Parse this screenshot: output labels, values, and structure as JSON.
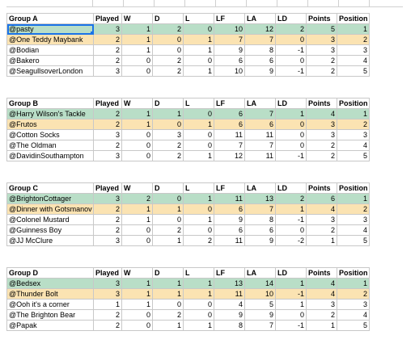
{
  "sheet": {
    "headers": [
      "Played",
      "W",
      "D",
      "L",
      "LF",
      "LA",
      "LD",
      "Points",
      "Position"
    ],
    "groups": [
      {
        "name": "Group A",
        "rows": [
          {
            "team": "@pasty",
            "vals": [
              "3",
              "1",
              "2",
              "0",
              "10",
              "12",
              "2",
              "5",
              "1"
            ]
          },
          {
            "team": "@One Teddy Maybank",
            "vals": [
              "2",
              "1",
              "0",
              "1",
              "7",
              "7",
              "0",
              "3",
              "2"
            ]
          },
          {
            "team": "@Bodian",
            "vals": [
              "2",
              "1",
              "0",
              "1",
              "9",
              "8",
              "-1",
              "3",
              "3"
            ]
          },
          {
            "team": "@Bakero",
            "vals": [
              "2",
              "0",
              "2",
              "0",
              "6",
              "6",
              "0",
              "2",
              "4"
            ]
          },
          {
            "team": "@SeagullsoverLondon",
            "vals": [
              "3",
              "0",
              "2",
              "1",
              "10",
              "9",
              "-1",
              "2",
              "5"
            ]
          }
        ]
      },
      {
        "name": "Group B",
        "rows": [
          {
            "team": "@Harry Wilson's Tackle",
            "vals": [
              "2",
              "1",
              "1",
              "0",
              "6",
              "7",
              "1",
              "4",
              "1"
            ]
          },
          {
            "team": "@Frutos",
            "vals": [
              "2",
              "1",
              "0",
              "1",
              "6",
              "6",
              "0",
              "3",
              "2"
            ]
          },
          {
            "team": "@Cotton Socks",
            "vals": [
              "3",
              "0",
              "3",
              "0",
              "11",
              "11",
              "0",
              "3",
              "3"
            ]
          },
          {
            "team": "@The Oldman",
            "vals": [
              "2",
              "0",
              "2",
              "0",
              "7",
              "7",
              "0",
              "2",
              "4"
            ]
          },
          {
            "team": "@DavidinSouthampton",
            "vals": [
              "3",
              "0",
              "2",
              "1",
              "12",
              "11",
              "-1",
              "2",
              "5"
            ]
          }
        ]
      },
      {
        "name": "Group C",
        "rows": [
          {
            "team": "@BrightonCottager",
            "vals": [
              "3",
              "2",
              "0",
              "1",
              "11",
              "13",
              "2",
              "6",
              "1"
            ]
          },
          {
            "team": "@Dinner with Gotsmanov",
            "vals": [
              "2",
              "1",
              "1",
              "0",
              "6",
              "7",
              "1",
              "4",
              "2"
            ]
          },
          {
            "team": "@Colonel Mustard",
            "vals": [
              "2",
              "1",
              "0",
              "1",
              "9",
              "8",
              "-1",
              "3",
              "3"
            ]
          },
          {
            "team": "@Guinness Boy",
            "vals": [
              "2",
              "0",
              "2",
              "0",
              "6",
              "6",
              "0",
              "2",
              "4"
            ]
          },
          {
            "team": "@JJ McClure",
            "vals": [
              "3",
              "0",
              "1",
              "2",
              "11",
              "9",
              "-2",
              "1",
              "5"
            ]
          }
        ]
      },
      {
        "name": "Group D",
        "rows": [
          {
            "team": "@Bedsex",
            "vals": [
              "3",
              "1",
              "1",
              "1",
              "13",
              "14",
              "1",
              "4",
              "1"
            ]
          },
          {
            "team": "@Thunder Bolt",
            "vals": [
              "3",
              "1",
              "1",
              "1",
              "11",
              "10",
              "-1",
              "4",
              "2"
            ]
          },
          {
            "team": "@Ooh it's a corner",
            "vals": [
              "1",
              "1",
              "0",
              "0",
              "4",
              "5",
              "1",
              "3",
              "3"
            ]
          },
          {
            "team": "@The Brighton Bear",
            "vals": [
              "2",
              "0",
              "2",
              "0",
              "9",
              "9",
              "0",
              "2",
              "4"
            ]
          },
          {
            "team": "@Papak",
            "vals": [
              "2",
              "0",
              "1",
              "1",
              "8",
              "7",
              "-1",
              "1",
              "5"
            ]
          }
        ]
      }
    ]
  }
}
